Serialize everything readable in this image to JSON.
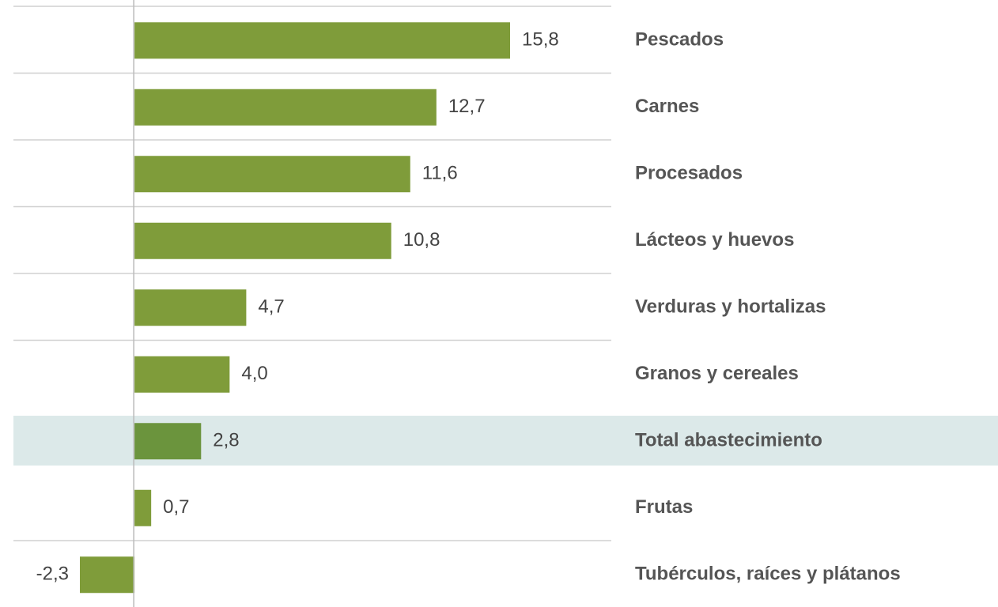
{
  "chart_data": {
    "type": "barh",
    "categories": [
      "Pescados",
      "Carnes",
      "Procesados",
      "Lácteos y huevos",
      "Verduras y hortalizas",
      "Granos y cereales",
      "Total abastecimiento",
      "Frutas",
      "Tubérculos, raíces y plátanos"
    ],
    "values": [
      15.8,
      12.7,
      11.6,
      10.8,
      4.7,
      4.0,
      2.8,
      0.7,
      -2.3
    ],
    "value_labels": [
      "15,8",
      "12,7",
      "11,6",
      "10,8",
      "4,7",
      "4,0",
      "2,8",
      "0,7",
      "-2,3"
    ],
    "colors": [
      "#7f9c3a",
      "#7f9c3a",
      "#7f9c3a",
      "#7f9c3a",
      "#7f9c3a",
      "#7f9c3a",
      "#6b943d",
      "#7f9c3a",
      "#7f9c3a"
    ],
    "highlight_colors": [
      null,
      null,
      null,
      null,
      null,
      null,
      "#dce9e9",
      null,
      null
    ]
  }
}
